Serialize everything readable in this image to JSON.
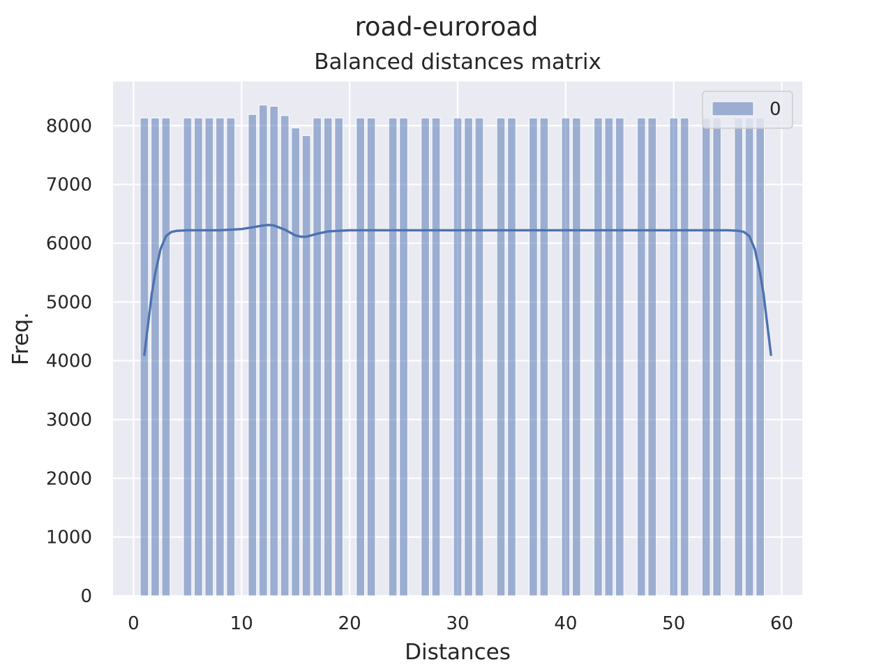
{
  "figure": {
    "suptitle": "road-euroroad",
    "background": "#ffffff"
  },
  "chart_data": {
    "type": "bar",
    "title": "Balanced distances matrix",
    "xlabel": "Distances",
    "ylabel": "Freq.",
    "xlim": [
      -1.9,
      61.9
    ],
    "ylim": [
      0,
      8750
    ],
    "xticks": [
      0,
      10,
      20,
      30,
      40,
      50,
      60
    ],
    "yticks": [
      0,
      1000,
      2000,
      3000,
      4000,
      5000,
      6000,
      7000,
      8000
    ],
    "grid": true,
    "legend": {
      "placement": "top-right",
      "entries": [
        "0"
      ]
    },
    "colors": {
      "bar": "#4c72b0",
      "bar_opacity": 0.5,
      "kde": "#4c72b0",
      "axes_bg": "#eaeaf2",
      "grid": "#ffffff"
    },
    "bin_width": 0.76,
    "bars": [
      {
        "x": 1,
        "value": 8130
      },
      {
        "x": 2,
        "value": 8130
      },
      {
        "x": 3,
        "value": 8130
      },
      {
        "x": 5,
        "value": 8130
      },
      {
        "x": 6,
        "value": 8130
      },
      {
        "x": 7,
        "value": 8130
      },
      {
        "x": 8,
        "value": 8130
      },
      {
        "x": 9,
        "value": 8130
      },
      {
        "x": 11,
        "value": 8190
      },
      {
        "x": 12,
        "value": 8350
      },
      {
        "x": 13,
        "value": 8330
      },
      {
        "x": 14,
        "value": 8170
      },
      {
        "x": 15,
        "value": 7960
      },
      {
        "x": 16,
        "value": 7830
      },
      {
        "x": 17,
        "value": 8130
      },
      {
        "x": 18,
        "value": 8130
      },
      {
        "x": 19,
        "value": 8130
      },
      {
        "x": 21,
        "value": 8130
      },
      {
        "x": 22,
        "value": 8130
      },
      {
        "x": 24,
        "value": 8130
      },
      {
        "x": 25,
        "value": 8130
      },
      {
        "x": 27,
        "value": 8130
      },
      {
        "x": 28,
        "value": 8130
      },
      {
        "x": 30,
        "value": 8130
      },
      {
        "x": 31,
        "value": 8130
      },
      {
        "x": 32,
        "value": 8130
      },
      {
        "x": 34,
        "value": 8130
      },
      {
        "x": 35,
        "value": 8130
      },
      {
        "x": 37,
        "value": 8130
      },
      {
        "x": 38,
        "value": 8130
      },
      {
        "x": 40,
        "value": 8130
      },
      {
        "x": 41,
        "value": 8130
      },
      {
        "x": 43,
        "value": 8130
      },
      {
        "x": 44,
        "value": 8130
      },
      {
        "x": 45,
        "value": 8130
      },
      {
        "x": 47,
        "value": 8130
      },
      {
        "x": 48,
        "value": 8130
      },
      {
        "x": 50,
        "value": 8130
      },
      {
        "x": 51,
        "value": 8130
      },
      {
        "x": 53,
        "value": 8130
      },
      {
        "x": 54,
        "value": 8130
      },
      {
        "x": 56,
        "value": 8130
      },
      {
        "x": 57,
        "value": 8130
      },
      {
        "x": 58,
        "value": 8130
      }
    ],
    "kde": {
      "x": [
        1,
        1.3,
        1.7,
        2,
        2.5,
        3,
        3.5,
        4,
        5,
        6,
        8,
        10,
        11,
        12,
        12.5,
        13,
        14,
        15,
        15.5,
        16,
        17,
        18,
        19,
        20,
        25,
        30,
        35,
        40,
        45,
        50,
        54,
        55,
        56,
        56.5,
        57,
        57.5,
        58,
        58.3,
        58.7,
        59
      ],
      "y": [
        4100,
        4560,
        5150,
        5480,
        5900,
        6120,
        6190,
        6210,
        6220,
        6220,
        6220,
        6240,
        6270,
        6300,
        6310,
        6300,
        6230,
        6130,
        6110,
        6110,
        6160,
        6200,
        6210,
        6220,
        6220,
        6220,
        6220,
        6220,
        6220,
        6220,
        6220,
        6220,
        6210,
        6190,
        6120,
        5900,
        5480,
        5150,
        4560,
        4100
      ]
    }
  }
}
